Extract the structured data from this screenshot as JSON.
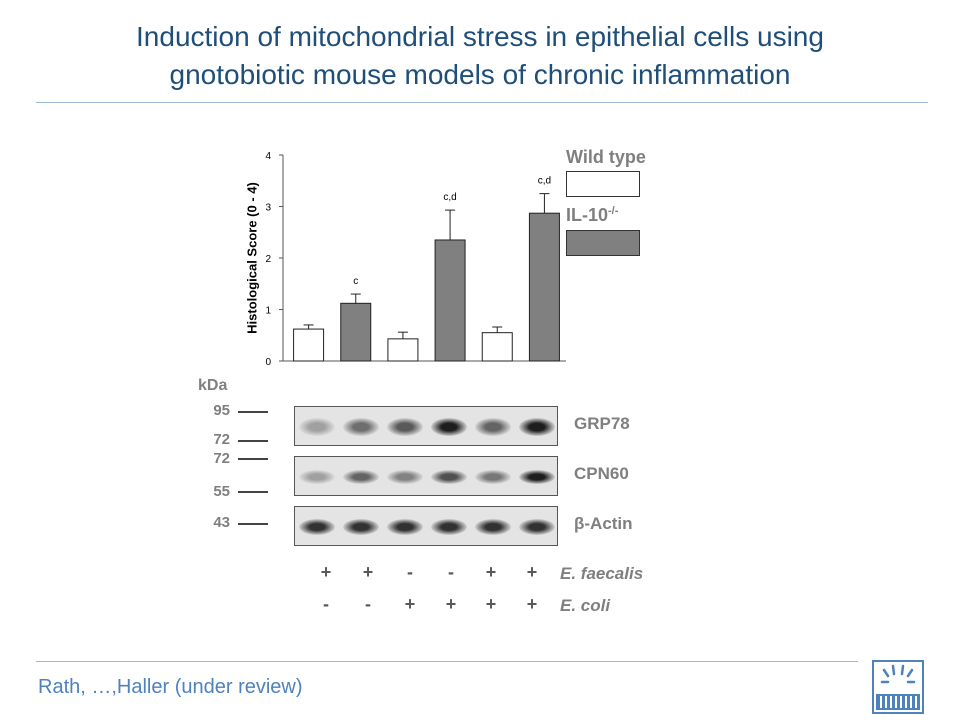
{
  "title": {
    "line1": "Induction of mitochondrial stress in epithelial cells using",
    "line2": "gnotobiotic mouse models of chronic inflammation"
  },
  "citation": "Rath, …,Haller (under review)",
  "colors": {
    "title": "#1f4e79",
    "citation": "#4f81bd",
    "wild_type": "#ffffff",
    "il10": "#808080"
  },
  "chart_data": {
    "type": "bar",
    "ylabel": "Histological Score (0 - 4)",
    "ylim": [
      0,
      4
    ],
    "yticks": [
      "0",
      "1",
      "2",
      "3",
      "4"
    ],
    "groups": [
      {
        "genotype": "Wild type",
        "value": 0.62,
        "error": 0.08,
        "annotation": ""
      },
      {
        "genotype": "IL-10-/-",
        "value": 1.12,
        "error": 0.18,
        "annotation": "c"
      },
      {
        "genotype": "Wild type",
        "value": 0.43,
        "error": 0.13,
        "annotation": ""
      },
      {
        "genotype": "IL-10-/-",
        "value": 2.35,
        "error": 0.58,
        "annotation": "c,d"
      },
      {
        "genotype": "Wild type",
        "value": 0.55,
        "error": 0.11,
        "annotation": ""
      },
      {
        "genotype": "IL-10-/-",
        "value": 2.87,
        "error": 0.38,
        "annotation": "c,d"
      }
    ],
    "legend": {
      "wild_type": "Wild type",
      "il10_base": "IL-10",
      "il10_sup": "-/-"
    }
  },
  "western_blot": {
    "unit": "kDa",
    "markers": [
      "95",
      "72",
      "72",
      "55",
      "43"
    ],
    "proteins": [
      "GRP78",
      "CPN60",
      "β-Actin"
    ],
    "intensities": {
      "GRP78": [
        0.3,
        0.55,
        0.65,
        0.95,
        0.6,
        0.95
      ],
      "CPN60": [
        0.3,
        0.6,
        0.45,
        0.7,
        0.5,
        0.95
      ],
      "beta_actin": [
        0.85,
        0.85,
        0.85,
        0.85,
        0.85,
        0.85
      ]
    }
  },
  "conditions": {
    "e_faecalis_label": "E. faecalis",
    "e_coli_label": "E. coli",
    "e_faecalis": [
      "+",
      "+",
      "-",
      "-",
      "+",
      "+"
    ],
    "e_coli": [
      "-",
      "-",
      "+",
      "+",
      "+",
      "+"
    ]
  }
}
